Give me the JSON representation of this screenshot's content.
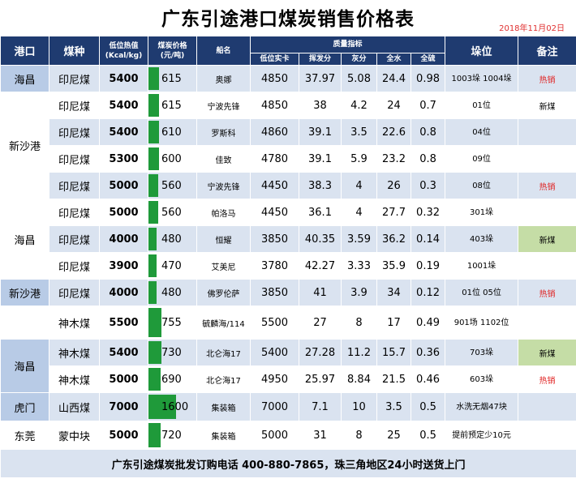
{
  "title": "广东引途港口煤炭销售价格表",
  "date": "2018年11月02日",
  "header": {
    "port": "港口",
    "coal": "煤种",
    "kcal": "低位热值",
    "kcal_unit": "(Kcal/kg)",
    "price": "煤炭价格",
    "price_unit": "(元/吨)",
    "ship": "船名",
    "quality": "质量指标",
    "q_kcal": "低位实卡",
    "q_volatile": "挥发分",
    "q_ash": "灰分",
    "q_water": "全水",
    "q_sulfur": "全硫",
    "berth": "垛位",
    "note": "备注"
  },
  "price_max": 1600,
  "rows": [
    {
      "port": "海昌",
      "coal": "印尼煤",
      "kcal": "5400",
      "price": "615",
      "price_num": 615,
      "ship": "奥娜",
      "q_kcal": "4850",
      "vol": "37.97",
      "ash": "5.08",
      "water": "24.4",
      "sulfur": "0.98",
      "berth": "1003垛 1004垛",
      "note": "热销",
      "note_type": "hot"
    },
    {
      "port": "新沙港",
      "coal": "印尼煤",
      "kcal": "5400",
      "price": "615",
      "price_num": 615,
      "ship": "宁波先锋",
      "q_kcal": "4850",
      "vol": "38",
      "ash": "4.2",
      "water": "24",
      "sulfur": "0.7",
      "berth": "01位",
      "note": "新煤",
      "note_type": "new"
    },
    {
      "port": "",
      "coal": "印尼煤",
      "kcal": "5400",
      "price": "610",
      "price_num": 610,
      "ship": "罗斯科",
      "q_kcal": "4860",
      "vol": "39.1",
      "ash": "3.5",
      "water": "22.6",
      "sulfur": "0.8",
      "berth": "04位",
      "note": "",
      "note_type": ""
    },
    {
      "port": "",
      "coal": "印尼煤",
      "kcal": "5300",
      "price": "600",
      "price_num": 600,
      "ship": "佳致",
      "q_kcal": "4780",
      "vol": "39.1",
      "ash": "5.9",
      "water": "23.2",
      "sulfur": "0.8",
      "berth": "09位",
      "note": "",
      "note_type": ""
    },
    {
      "port": "",
      "coal": "印尼煤",
      "kcal": "5000",
      "price": "560",
      "price_num": 560,
      "ship": "宁波先锋",
      "q_kcal": "4450",
      "vol": "38.3",
      "ash": "4",
      "water": "26",
      "sulfur": "0.3",
      "berth": "08位",
      "note": "热销",
      "note_type": "hot"
    },
    {
      "port": "海昌",
      "coal": "印尼煤",
      "kcal": "5000",
      "price": "560",
      "price_num": 560,
      "ship": "帕洛马",
      "q_kcal": "4450",
      "vol": "36.1",
      "ash": "4",
      "water": "27.7",
      "sulfur": "0.32",
      "berth": "301垛",
      "note": "",
      "note_type": ""
    },
    {
      "port": "",
      "coal": "印尼煤",
      "kcal": "4000",
      "price": "480",
      "price_num": 480,
      "ship": "恒耀",
      "q_kcal": "3850",
      "vol": "40.35",
      "ash": "3.59",
      "water": "36.2",
      "sulfur": "0.14",
      "berth": "403垛",
      "note": "新煤",
      "note_type": "new"
    },
    {
      "port": "",
      "coal": "印尼煤",
      "kcal": "3900",
      "price": "470",
      "price_num": 470,
      "ship": "艾美尼",
      "q_kcal": "3780",
      "vol": "42.27",
      "ash": "3.33",
      "water": "35.9",
      "sulfur": "0.19",
      "berth": "1001垛",
      "note": "",
      "note_type": ""
    },
    {
      "port": "新沙港",
      "coal": "印尼煤",
      "kcal": "4000",
      "price": "480",
      "price_num": 480,
      "ship": "佛罗伦萨",
      "q_kcal": "3850",
      "vol": "41",
      "ash": "3.9",
      "water": "34",
      "sulfur": "0.12",
      "berth": "01位 05位",
      "note": "热销",
      "note_type": "hot"
    },
    {
      "port": "",
      "coal": "神木煤",
      "kcal": "5500",
      "price": "755",
      "price_num": 755,
      "ship": "毓麟海/114",
      "q_kcal": "5500",
      "vol": "27",
      "ash": "8",
      "water": "17",
      "sulfur": "0.49",
      "berth": "901场 1102位",
      "note": "",
      "note_type": ""
    },
    {
      "port": "海昌",
      "coal": "神木煤",
      "kcal": "5400",
      "price": "730",
      "price_num": 730,
      "ship": "北仑海17",
      "q_kcal": "5400",
      "vol": "27.28",
      "ash": "11.2",
      "water": "15.7",
      "sulfur": "0.36",
      "berth": "703垛",
      "note": "新煤",
      "note_type": "new"
    },
    {
      "port": "",
      "coal": "神木煤",
      "kcal": "5000",
      "price": "690",
      "price_num": 690,
      "ship": "北仑海17",
      "q_kcal": "4950",
      "vol": "25.97",
      "ash": "8.84",
      "water": "21.5",
      "sulfur": "0.46",
      "berth": "603垛",
      "note": "热销",
      "note_type": "hot"
    },
    {
      "port": "虎门",
      "coal": "山西煤",
      "kcal": "7000",
      "price": "1600",
      "price_num": 1600,
      "ship": "集装箱",
      "q_kcal": "7000",
      "vol": "7.1",
      "ash": "10",
      "water": "3.5",
      "sulfur": "0.5",
      "berth": "水洗无烟47块",
      "note": "",
      "note_type": ""
    },
    {
      "port": "东莞",
      "coal": "蒙中块",
      "kcal": "5000",
      "price": "720",
      "price_num": 720,
      "ship": "集装箱",
      "q_kcal": "5000",
      "vol": "31",
      "ash": "8",
      "water": "25",
      "sulfur": "0.5",
      "berth": "提前预定少10元",
      "note": "",
      "note_type": ""
    }
  ],
  "footer": "广东引途煤炭批发订购电话 400-880-7865，珠三角地区24小时送货上门"
}
